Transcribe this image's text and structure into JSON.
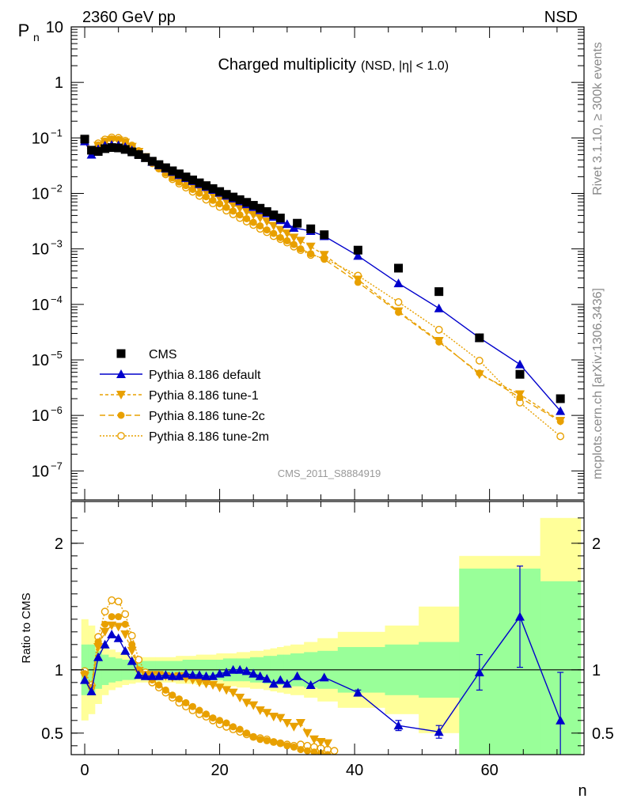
{
  "header": {
    "left": "2360 GeV pp",
    "right": "NSD"
  },
  "side_labels": {
    "rivet": "Rivet 3.1.10, ≥ 300k events",
    "mcplots": "mcplots.cern.ch [arXiv:1306.3436]"
  },
  "colors": {
    "cms": "#000000",
    "default": "#0000cc",
    "tunes": "#e8a000",
    "band_inner": "#99ff99",
    "band_outer": "#ffff99"
  },
  "chart_data": [
    {
      "type": "scatter",
      "scale": "log",
      "title": "Charged multiplicity",
      "subtitle": "(NSD, |η| < 1.0)",
      "ylabel": "P",
      "ylabel_sub": "n",
      "xlim": [
        -2,
        74
      ],
      "ylim": [
        3e-08,
        10
      ],
      "y_ticks": [
        {
          "value": 10,
          "label": "10"
        },
        {
          "value": 1,
          "label": "1"
        },
        {
          "value": 0.1,
          "label": "10",
          "exp": "−1"
        },
        {
          "value": 0.01,
          "label": "10",
          "exp": "−2"
        },
        {
          "value": 0.001,
          "label": "10",
          "exp": "−3"
        },
        {
          "value": 0.0001,
          "label": "10",
          "exp": "−4"
        },
        {
          "value": 1e-05,
          "label": "10",
          "exp": "−5"
        },
        {
          "value": 1e-06,
          "label": "10",
          "exp": "−6"
        },
        {
          "value": 1e-07,
          "label": "10",
          "exp": "−7"
        }
      ],
      "watermark": "CMS_2011_S8884919",
      "legend": [
        "CMS",
        "Pythia 8.186 default",
        "Pythia 8.186 tune-1",
        "Pythia 8.186 tune-2c",
        "Pythia 8.186 tune-2m"
      ],
      "series": [
        {
          "name": "CMS",
          "x": [
            0,
            1,
            2,
            3,
            4,
            5,
            6,
            7,
            8,
            9,
            10,
            11,
            12,
            13,
            14,
            15,
            16,
            17,
            18,
            19,
            20,
            21,
            22,
            23,
            24,
            25,
            26,
            27,
            28,
            29,
            31.5,
            33.5,
            35.5,
            40.5,
            46.5,
            52.5,
            58.5,
            64.5,
            70.5
          ],
          "y": [
            0.095,
            0.06,
            0.057,
            0.064,
            0.067,
            0.066,
            0.062,
            0.056,
            0.05,
            0.044,
            0.038,
            0.033,
            0.029,
            0.0255,
            0.0225,
            0.0198,
            0.0175,
            0.0155,
            0.0138,
            0.0122,
            0.0108,
            0.0096,
            0.0086,
            0.0077,
            0.0069,
            0.0061,
            0.0054,
            0.0047,
            0.0041,
            0.0036,
            0.0029,
            0.0023,
            0.0018,
            0.00095,
            0.00045,
            0.00017,
            2.5e-05,
            5.5e-06,
            2e-06
          ]
        },
        {
          "name": "Pythia 8.186 default",
          "x": [
            0,
            1,
            2,
            3,
            4,
            5,
            6,
            7,
            8,
            9,
            10,
            11,
            12,
            13,
            14,
            15,
            16,
            17,
            18,
            19,
            20,
            21,
            22,
            23,
            24,
            25,
            26,
            27,
            28,
            29,
            30,
            31,
            33.5,
            35.5,
            40.5,
            46.5,
            52.5,
            58.5,
            64.5,
            70.5
          ],
          "y": [
            0.087,
            0.05,
            0.063,
            0.073,
            0.075,
            0.074,
            0.069,
            0.06,
            0.051,
            0.044,
            0.037,
            0.032,
            0.028,
            0.0244,
            0.0214,
            0.0189,
            0.0167,
            0.0147,
            0.0131,
            0.0116,
            0.0103,
            0.0091,
            0.0081,
            0.0072,
            0.0064,
            0.0057,
            0.005,
            0.0044,
            0.0038,
            0.0033,
            0.0028,
            0.0024,
            0.0021,
            0.0017,
            0.00075,
            0.00024,
            8.5e-05,
            2.5e-05,
            8.3e-06,
            1.2e-06
          ]
        },
        {
          "name": "Pythia 8.186 tune-1",
          "x": [
            0,
            1,
            2,
            3,
            4,
            5,
            6,
            7,
            8,
            9,
            10,
            11,
            12,
            13,
            14,
            15,
            16,
            17,
            18,
            19,
            20,
            21,
            22,
            23,
            24,
            25,
            26,
            27,
            28,
            29,
            30,
            31,
            32,
            33.5,
            35.5,
            40.5,
            46.5,
            52.5,
            58.5,
            64.5,
            70.5
          ],
          "y": [
            0.09,
            0.055,
            0.072,
            0.085,
            0.092,
            0.09,
            0.082,
            0.069,
            0.056,
            0.045,
            0.036,
            0.03,
            0.025,
            0.021,
            0.0183,
            0.016,
            0.0139,
            0.0121,
            0.0106,
            0.0093,
            0.0081,
            0.0071,
            0.0062,
            0.0054,
            0.0047,
            0.0041,
            0.0036,
            0.0031,
            0.0026,
            0.0022,
            0.0019,
            0.0016,
            0.0014,
            0.0011,
            0.00078,
            0.00028,
            7.5e-05,
            2.2e-05,
            5.5e-06,
            2.4e-06,
            8e-07
          ]
        },
        {
          "name": "Pythia 8.186 tune-2c",
          "x": [
            0,
            1,
            2,
            3,
            4,
            5,
            6,
            7,
            8,
            9,
            10,
            11,
            12,
            13,
            14,
            15,
            16,
            17,
            18,
            19,
            20,
            21,
            22,
            23,
            24,
            25,
            26,
            27,
            28,
            29,
            30,
            31,
            32,
            33.5,
            35.5,
            40.5,
            46.5,
            52.5,
            58.5,
            64.5,
            70.5
          ],
          "y": [
            0.092,
            0.056,
            0.075,
            0.088,
            0.096,
            0.094,
            0.085,
            0.07,
            0.056,
            0.044,
            0.035,
            0.028,
            0.023,
            0.019,
            0.016,
            0.0138,
            0.0118,
            0.0101,
            0.0087,
            0.0075,
            0.0065,
            0.0056,
            0.0048,
            0.0041,
            0.0035,
            0.003,
            0.0026,
            0.0022,
            0.0019,
            0.0016,
            0.0014,
            0.0012,
            0.001,
            0.00082,
            0.00065,
            0.00025,
            7.2e-05,
            2.1e-05,
            5.8e-06,
            2.1e-06,
            7.8e-07
          ]
        },
        {
          "name": "Pythia 8.186 tune-2m",
          "x": [
            0,
            1,
            2,
            3,
            4,
            5,
            6,
            7,
            8,
            9,
            10,
            11,
            12,
            13,
            14,
            15,
            16,
            17,
            18,
            19,
            20,
            21,
            22,
            23,
            24,
            25,
            26,
            27,
            28,
            29,
            30,
            31,
            32,
            33.5,
            35.5,
            40.5,
            46.5,
            52.5,
            58.5,
            64.5,
            70.5
          ],
          "y": [
            0.094,
            0.057,
            0.08,
            0.094,
            0.102,
            0.1,
            0.089,
            0.073,
            0.058,
            0.045,
            0.035,
            0.028,
            0.022,
            0.018,
            0.015,
            0.0127,
            0.0107,
            0.009,
            0.0077,
            0.0066,
            0.0057,
            0.0049,
            0.0042,
            0.0036,
            0.0031,
            0.0027,
            0.0023,
            0.002,
            0.0017,
            0.0015,
            0.0013,
            0.0011,
            0.00095,
            0.00078,
            0.00068,
            0.00033,
            0.00011,
            3.5e-05,
            9.7e-06,
            1.7e-06,
            4.2e-07
          ]
        }
      ]
    },
    {
      "type": "scatter",
      "ylabel": "Ratio to CMS",
      "xlabel": "n",
      "xlim": [
        -2,
        74
      ],
      "ylim": [
        0.33,
        2.33
      ],
      "x_ticks": [
        0,
        20,
        40,
        60
      ],
      "y_ticks": [
        0.5,
        1,
        2
      ],
      "bands": [
        {
          "x": [
            -0.5,
            0.5,
            1.5,
            2.5,
            3.5,
            4.5,
            5.5,
            6.5,
            7.5,
            8.5,
            9.5,
            10.5,
            11.5,
            12.5,
            13.5,
            14.5,
            15.5,
            16.5,
            17.5,
            18.5,
            19.5,
            20.5,
            21.5,
            22.5,
            23.5,
            24.5,
            25.5,
            26.5,
            27.5,
            28.5,
            29.5,
            30.5,
            32.5,
            34.5,
            37.5,
            44.5,
            49.5,
            55.5,
            61.5,
            67.5,
            73.5
          ],
          "inner": [
            0.2,
            0.2,
            0.15,
            0.12,
            0.1,
            0.09,
            0.08,
            0.08,
            0.07,
            0.07,
            0.07,
            0.07,
            0.07,
            0.07,
            0.07,
            0.08,
            0.08,
            0.08,
            0.08,
            0.08,
            0.08,
            0.09,
            0.09,
            0.09,
            0.09,
            0.1,
            0.1,
            0.11,
            0.11,
            0.12,
            0.12,
            0.13,
            0.14,
            0.15,
            0.18,
            0.2,
            0.22,
            0.8,
            0.8,
            0.7
          ],
          "outer": [
            0.4,
            0.35,
            0.27,
            0.2,
            0.16,
            0.14,
            0.12,
            0.11,
            0.1,
            0.1,
            0.1,
            0.1,
            0.1,
            0.1,
            0.11,
            0.11,
            0.11,
            0.12,
            0.12,
            0.12,
            0.13,
            0.13,
            0.13,
            0.14,
            0.14,
            0.15,
            0.15,
            0.16,
            0.17,
            0.18,
            0.19,
            0.2,
            0.22,
            0.25,
            0.3,
            0.35,
            0.5,
            0.9,
            0.9,
            1.2
          ]
        }
      ],
      "series": [
        {
          "name": "Pythia 8.186 default",
          "x": [
            0,
            1,
            2,
            3,
            4,
            5,
            6,
            7,
            8,
            9,
            10,
            11,
            12,
            13,
            14,
            15,
            16,
            17,
            18,
            19,
            20,
            21,
            22,
            23,
            24,
            25,
            26,
            27,
            28,
            29,
            30,
            31.5,
            33.5,
            35.5,
            40.5,
            46.5,
            52.5,
            58.5,
            64.5,
            70.5
          ],
          "y": [
            0.92,
            0.83,
            1.1,
            1.2,
            1.28,
            1.25,
            1.15,
            1.07,
            0.96,
            0.95,
            0.95,
            0.95,
            0.96,
            0.95,
            0.95,
            0.97,
            0.96,
            0.96,
            0.95,
            0.95,
            0.97,
            0.98,
            1.0,
            1.0,
            0.99,
            0.97,
            0.95,
            0.93,
            0.89,
            0.92,
            0.89,
            0.95,
            0.88,
            0.94,
            0.82,
            0.56,
            0.51,
            0.98,
            1.42,
            0.6
          ],
          "err": [
            0,
            0,
            0,
            0,
            0,
            0,
            0,
            0,
            0,
            0,
            0,
            0,
            0,
            0,
            0,
            0,
            0,
            0,
            0,
            0,
            0,
            0,
            0,
            0,
            0,
            0,
            0,
            0,
            0,
            0,
            0,
            0,
            0,
            0,
            0.02,
            0.04,
            0.05,
            0.14,
            0.4,
            0.38
          ]
        },
        {
          "name": "Pythia 8.186 tune-1",
          "x": [
            0,
            1,
            2,
            3,
            4,
            5,
            6,
            7,
            8,
            9,
            10,
            11,
            12,
            13,
            14,
            15,
            16,
            17,
            18,
            19,
            20,
            21,
            22,
            23,
            24,
            25,
            26,
            27,
            28,
            29,
            30,
            31,
            32,
            33,
            34,
            35,
            36
          ],
          "y": [
            0.95,
            0.85,
            1.18,
            1.3,
            1.35,
            1.34,
            1.28,
            1.15,
            0.99,
            0.96,
            0.96,
            0.96,
            0.95,
            0.94,
            0.95,
            0.93,
            0.92,
            0.9,
            0.89,
            0.88,
            0.86,
            0.84,
            0.82,
            0.78,
            0.74,
            0.72,
            0.68,
            0.66,
            0.63,
            0.62,
            0.58,
            0.55,
            0.58,
            0.5,
            0.45,
            0.43,
            0.42
          ]
        },
        {
          "name": "Pythia 8.186 tune-2c",
          "x": [
            0,
            1,
            2,
            3,
            4,
            5,
            6,
            7,
            8,
            9,
            10,
            11,
            12,
            13,
            14,
            15,
            16,
            17,
            18,
            19,
            20,
            21,
            22,
            23,
            24,
            25,
            26,
            27,
            28,
            29,
            30,
            31,
            32,
            33,
            34,
            35,
            36
          ],
          "y": [
            0.97,
            0.86,
            1.22,
            1.36,
            1.42,
            1.42,
            1.36,
            1.2,
            1.0,
            0.96,
            0.92,
            0.88,
            0.84,
            0.8,
            0.77,
            0.74,
            0.71,
            0.68,
            0.65,
            0.62,
            0.6,
            0.58,
            0.55,
            0.53,
            0.5,
            0.47,
            0.45,
            0.44,
            0.43,
            0.42,
            0.4,
            0.39,
            0.37,
            0.36,
            0.35,
            0.34,
            0.33
          ]
        },
        {
          "name": "Pythia 8.186 tune-2m",
          "x": [
            0,
            1,
            2,
            3,
            4,
            5,
            6,
            7,
            8,
            9,
            10,
            11,
            12,
            13,
            14,
            15,
            16,
            17,
            18,
            19,
            20,
            21,
            22,
            23,
            24,
            25,
            26,
            27,
            28,
            29,
            30,
            31,
            32,
            33,
            34,
            35,
            36,
            37
          ],
          "y": [
            0.99,
            0.88,
            1.26,
            1.46,
            1.55,
            1.54,
            1.44,
            1.27,
            1.08,
            0.98,
            0.9,
            0.86,
            0.82,
            0.78,
            0.74,
            0.71,
            0.68,
            0.65,
            0.63,
            0.6,
            0.57,
            0.55,
            0.53,
            0.51,
            0.49,
            0.47,
            0.46,
            0.45,
            0.43,
            0.42,
            0.41,
            0.4,
            0.41,
            0.4,
            0.39,
            0.38,
            0.37,
            0.36
          ]
        }
      ]
    }
  ]
}
